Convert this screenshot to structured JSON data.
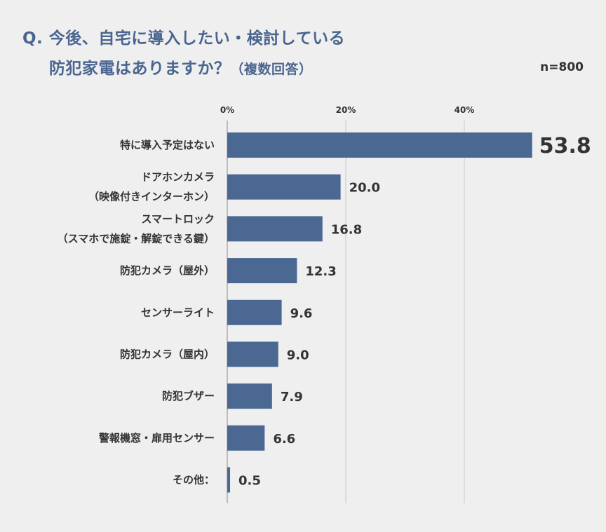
{
  "title": {
    "line1": "Q. 今後、自宅に導入したい・検討している",
    "line2": "防犯家電はありますか？",
    "note": "（複数回答）"
  },
  "sample": "n=800",
  "chart_data": {
    "type": "bar",
    "orientation": "horizontal",
    "title": "Q. 今後、自宅に導入したい・検討している防犯家電はありますか？（複数回答）",
    "categories": [
      [
        "特に導入予定はない"
      ],
      [
        "ドアホンカメラ",
        "（映像付きインターホン）"
      ],
      [
        "スマートロック",
        "（スマホで施錠・解錠できる鍵）"
      ],
      [
        "防犯カメラ（屋外）"
      ],
      [
        "センサーライト"
      ],
      [
        "防犯カメラ（屋内）"
      ],
      [
        "防犯ブザー"
      ],
      [
        "警報機窓・扉用センサー"
      ],
      [
        "その他："
      ]
    ],
    "values": [
      53.8,
      20.0,
      16.8,
      12.3,
      9.6,
      9.0,
      7.9,
      6.6,
      0.5
    ],
    "value_labels": [
      "53.8",
      "20.0",
      "16.8",
      "12.3",
      "9.6",
      "9.0",
      "7.9",
      "6.6",
      "0.5"
    ],
    "x_ticks": [
      "0%",
      "20%",
      "40%"
    ],
    "x_tick_values": [
      0,
      20,
      40
    ],
    "xlim": [
      0,
      60
    ],
    "grid": true,
    "bar_color": "#4a6892",
    "title_color": "#4a6590"
  }
}
